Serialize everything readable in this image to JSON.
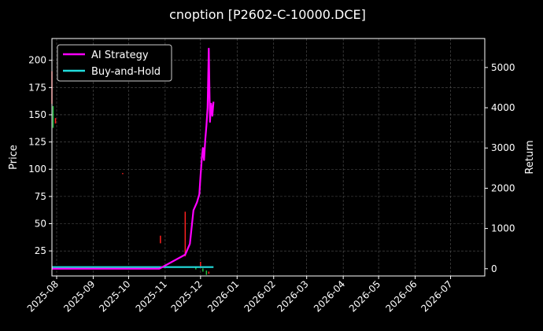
{
  "chart_data": {
    "type": "line",
    "title": "cnoption [P2602-C-10000.DCE]",
    "xlabel": "",
    "ylabel": "Price",
    "ylabel_right": "Return",
    "x_ticks": [
      "2025-08",
      "2025-09",
      "2025-10",
      "2025-11",
      "2025-12",
      "2026-01",
      "2026-02",
      "2026-03",
      "2026-04",
      "2026-05",
      "2026-06",
      "2026-07"
    ],
    "xlim": [
      "2025-07-28",
      "2026-07-30"
    ],
    "ylim_left": [
      2,
      220
    ],
    "yticks_left": [
      25,
      50,
      75,
      100,
      125,
      150,
      175,
      200
    ],
    "ylim_right": [
      -180,
      5720
    ],
    "yticks_right": [
      0,
      1000,
      2000,
      3000,
      4000,
      5000
    ],
    "grid": true,
    "legend_position": "top-left",
    "series": [
      {
        "name": "AI Strategy",
        "color": "#ff00ff",
        "axis": "right",
        "points": [
          [
            "2025-07-28",
            0
          ],
          [
            "2025-10-27",
            0
          ],
          [
            "2025-11-18",
            350
          ],
          [
            "2025-11-22",
            620
          ],
          [
            "2025-11-25",
            1450
          ],
          [
            "2025-11-28",
            1650
          ],
          [
            "2025-11-30",
            1850
          ],
          [
            "2025-12-01",
            2300
          ],
          [
            "2025-12-02",
            2700
          ],
          [
            "2025-12-03",
            3000
          ],
          [
            "2025-12-04",
            2700
          ],
          [
            "2025-12-05",
            3200
          ],
          [
            "2025-12-06",
            3550
          ],
          [
            "2025-12-07",
            4000
          ],
          [
            "2025-12-08",
            5470
          ],
          [
            "2025-12-09",
            3650
          ],
          [
            "2025-12-10",
            4100
          ],
          [
            "2025-12-11",
            3800
          ],
          [
            "2025-12-12",
            4150
          ]
        ]
      },
      {
        "name": "Buy-and-Hold",
        "color": "#22dddd",
        "axis": "right",
        "points": [
          [
            "2025-07-28",
            40
          ],
          [
            "2025-12-12",
            40
          ]
        ]
      }
    ],
    "candles": [
      {
        "date": "2025-07-28",
        "low": 160,
        "high": 190,
        "color": "#ff2020"
      },
      {
        "date": "2025-07-29",
        "low": 138,
        "high": 158,
        "color": "#20c040"
      },
      {
        "date": "2025-07-31",
        "low": 142,
        "high": 147,
        "color": "#ff2020"
      },
      {
        "date": "2025-09-26",
        "low": 95.5,
        "high": 96.5,
        "color": "#ff2020"
      },
      {
        "date": "2025-10-28",
        "low": 32,
        "high": 39,
        "color": "#ff2020"
      },
      {
        "date": "2025-11-18",
        "low": 20,
        "high": 61,
        "color": "#ff2020"
      },
      {
        "date": "2025-11-27",
        "low": 8,
        "high": 10,
        "color": "#20c040"
      },
      {
        "date": "2025-12-01",
        "low": 11,
        "high": 15,
        "color": "#ff2020"
      },
      {
        "date": "2025-12-03",
        "low": 6,
        "high": 9,
        "color": "#20c040"
      },
      {
        "date": "2025-12-06",
        "low": 3,
        "high": 7,
        "color": "#20c040"
      },
      {
        "date": "2025-12-08",
        "low": 4,
        "high": 6,
        "color": "#ff2020"
      }
    ]
  }
}
